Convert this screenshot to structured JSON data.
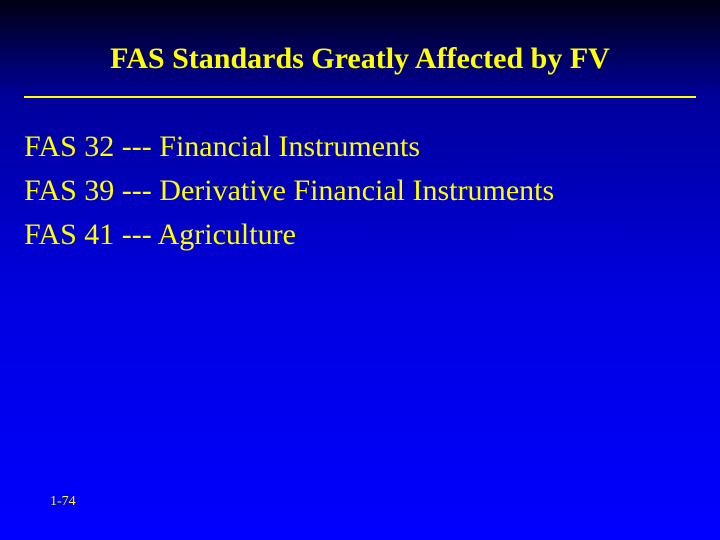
{
  "slide": {
    "title": "FAS Standards Greatly Affected by FV",
    "items": [
      "FAS 32 --- Financial Instruments",
      "FAS 39 --- Derivative Financial Instruments",
      "FAS 41 --- Agriculture"
    ],
    "page_number": "1-74",
    "colors": {
      "text": "#ffff00",
      "bg_gradient_top": "#000012",
      "bg_gradient_bottom": "#0000ff"
    },
    "typography": {
      "family": "Times New Roman",
      "title_size_pt": 30,
      "body_size_pt": 30,
      "page_num_size_pt": 14,
      "weight_title": "bold",
      "weight_body": "normal"
    }
  }
}
